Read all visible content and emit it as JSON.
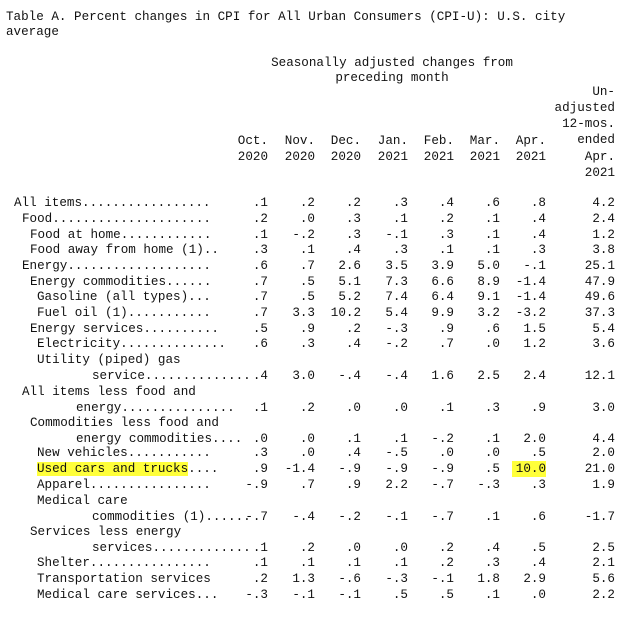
{
  "title": [
    "Table A. Percent changes in CPI for All Urban Consumers (CPI-U): U.S. city",
    "average"
  ],
  "table": {
    "group_header": [
      "Seasonally adjusted changes from",
      "preceding month"
    ],
    "columns": [
      [
        "Oct.",
        "2020"
      ],
      [
        "Nov.",
        "2020"
      ],
      [
        "Dec.",
        "2020"
      ],
      [
        "Jan.",
        "2021"
      ],
      [
        "Feb.",
        "2021"
      ],
      [
        "Mar.",
        "2021"
      ],
      [
        "Apr.",
        "2021"
      ],
      [
        "Un-",
        "adjusted",
        "12-mos.",
        "ended",
        "Apr.",
        "2021"
      ]
    ],
    "rows": [
      {
        "label": [
          "All items................."
        ],
        "values": [
          ".1",
          ".2",
          ".2",
          ".3",
          ".4",
          ".6",
          ".8",
          "4.2"
        ]
      },
      {
        "label": [
          "Food....................."
        ],
        "values": [
          ".2",
          ".0",
          ".3",
          ".1",
          ".2",
          ".1",
          ".4",
          "2.4"
        ]
      },
      {
        "label": [
          "Food at home............"
        ],
        "values": [
          ".1",
          "-.2",
          ".3",
          "-.1",
          ".3",
          ".1",
          ".4",
          "1.2"
        ]
      },
      {
        "label": [
          "Food away from home (1).."
        ],
        "values": [
          ".3",
          ".1",
          ".4",
          ".3",
          ".1",
          ".1",
          ".3",
          "3.8"
        ]
      },
      {
        "label": [
          "Energy..................."
        ],
        "values": [
          ".6",
          ".7",
          "2.6",
          "3.5",
          "3.9",
          "5.0",
          "-.1",
          "25.1"
        ]
      },
      {
        "label": [
          "Energy commodities......"
        ],
        "values": [
          ".7",
          ".5",
          "5.1",
          "7.3",
          "6.6",
          "8.9",
          "-1.4",
          "47.9"
        ]
      },
      {
        "label": [
          "Gasoline (all types)..."
        ],
        "values": [
          ".7",
          ".5",
          "5.2",
          "7.4",
          "6.4",
          "9.1",
          "-1.4",
          "49.6"
        ]
      },
      {
        "label": [
          "Fuel oil (1)..........."
        ],
        "values": [
          ".7",
          "3.3",
          "10.2",
          "5.4",
          "9.9",
          "3.2",
          "-3.2",
          "37.3"
        ]
      },
      {
        "label": [
          "Energy services.........."
        ],
        "values": [
          ".5",
          ".9",
          ".2",
          "-.3",
          ".9",
          ".6",
          "1.5",
          "5.4"
        ]
      },
      {
        "label": [
          "Electricity.............."
        ],
        "values": [
          ".6",
          ".3",
          ".4",
          "-.2",
          ".7",
          ".0",
          "1.2",
          "3.6"
        ]
      },
      {
        "label": [
          "Utility (piped) gas",
          "service.............."
        ],
        "values": [
          ".4",
          "3.0",
          "-.4",
          "-.4",
          "1.6",
          "2.5",
          "2.4",
          "12.1"
        ]
      },
      {
        "label": [
          "All items less food and",
          "energy..............."
        ],
        "values": [
          ".1",
          ".2",
          ".0",
          ".0",
          ".1",
          ".3",
          ".9",
          "3.0"
        ]
      },
      {
        "label": [
          "Commodities less food and",
          "energy commodities...."
        ],
        "values": [
          ".0",
          ".0",
          ".1",
          ".1",
          "-.2",
          ".1",
          "2.0",
          "4.4"
        ]
      },
      {
        "label": [
          "New vehicles..........."
        ],
        "values": [
          ".3",
          ".0",
          ".4",
          "-.5",
          ".0",
          ".0",
          ".5",
          "2.0"
        ]
      },
      {
        "label": [
          "Used cars and trucks...."
        ],
        "values": [
          ".9",
          "-1.4",
          "-.9",
          "-.9",
          "-.9",
          ".5",
          "10.0",
          "21.0"
        ]
      },
      {
        "label": [
          "Apparel................"
        ],
        "values": [
          "-.9",
          ".7",
          ".9",
          "2.2",
          "-.7",
          "-.3",
          ".3",
          "1.9"
        ]
      },
      {
        "label": [
          "Medical care",
          "commodities (1)......"
        ],
        "values": [
          "-.7",
          "-.4",
          "-.2",
          "-.1",
          "-.7",
          ".1",
          ".6",
          "-1.7"
        ]
      },
      {
        "label": [
          "Services less energy",
          "services............."
        ],
        "values": [
          ".1",
          ".2",
          ".0",
          ".0",
          ".2",
          ".4",
          ".5",
          "2.5"
        ]
      },
      {
        "label": [
          "Shelter................"
        ],
        "values": [
          ".1",
          ".1",
          ".1",
          ".1",
          ".2",
          ".3",
          ".4",
          "2.1"
        ]
      },
      {
        "label": [
          "Transportation services"
        ],
        "values": [
          ".2",
          "1.3",
          "-.6",
          "-.3",
          "-.1",
          "1.8",
          "2.9",
          "5.6"
        ]
      },
      {
        "label": [
          "Medical care services..."
        ],
        "values": [
          "-.3",
          "-.1",
          "-.1",
          ".5",
          ".5",
          ".1",
          ".0",
          "2.2"
        ]
      }
    ]
  }
}
